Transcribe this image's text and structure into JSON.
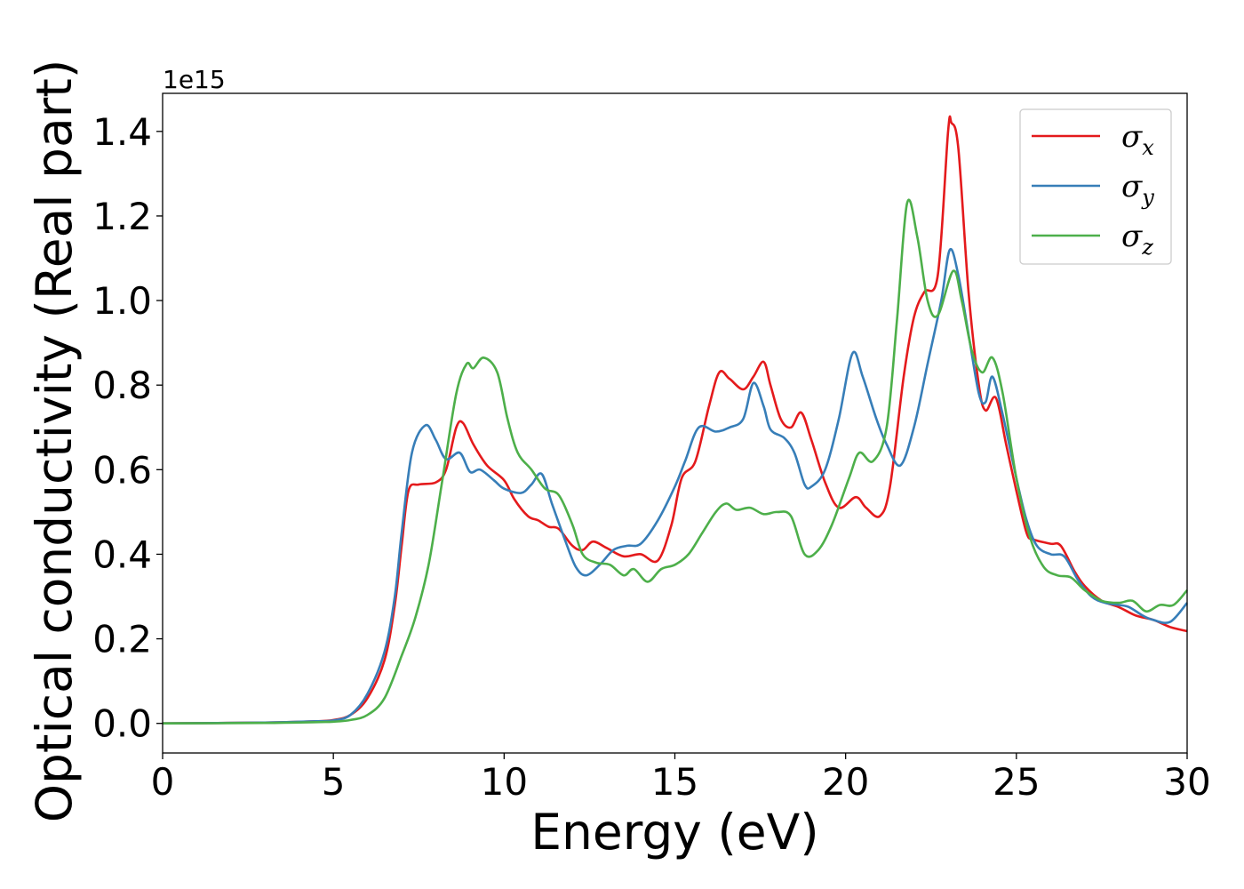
{
  "chart_data": {
    "type": "line",
    "xlabel": "Energy (eV)",
    "ylabel": "Optical conductivity (Real part)",
    "y_offset_label": "1e15",
    "xlim": [
      0,
      30
    ],
    "ylim": [
      -0.07,
      1.49
    ],
    "x_ticks": [
      0,
      5,
      10,
      15,
      20,
      25,
      30
    ],
    "x_tick_labels": [
      "0",
      "5",
      "10",
      "15",
      "20",
      "25",
      "30"
    ],
    "y_ticks": [
      0.0,
      0.2,
      0.4,
      0.6,
      0.8,
      1.0,
      1.2,
      1.4
    ],
    "y_tick_labels": [
      "0.0",
      "0.2",
      "0.4",
      "0.6",
      "0.8",
      "1.0",
      "1.2",
      "1.4"
    ],
    "grid": false,
    "legend_position": "top-right",
    "series": [
      {
        "name": "σx",
        "legend_base": "σ",
        "legend_sub": "x",
        "color": "#e41a1c",
        "points": [
          [
            0,
            0
          ],
          [
            3,
            0.002
          ],
          [
            4.5,
            0.005
          ],
          [
            5,
            0.008
          ],
          [
            5.5,
            0.02
          ],
          [
            6,
            0.06
          ],
          [
            6.5,
            0.15
          ],
          [
            6.8,
            0.28
          ],
          [
            7,
            0.42
          ],
          [
            7.2,
            0.55
          ],
          [
            7.5,
            0.565
          ],
          [
            8,
            0.57
          ],
          [
            8.3,
            0.6
          ],
          [
            8.6,
            0.7
          ],
          [
            8.8,
            0.71
          ],
          [
            9.1,
            0.66
          ],
          [
            9.5,
            0.61
          ],
          [
            10,
            0.575
          ],
          [
            10.3,
            0.53
          ],
          [
            10.7,
            0.49
          ],
          [
            11,
            0.48
          ],
          [
            11.3,
            0.465
          ],
          [
            11.6,
            0.46
          ],
          [
            12,
            0.42
          ],
          [
            12.3,
            0.41
          ],
          [
            12.6,
            0.43
          ],
          [
            13,
            0.415
          ],
          [
            13.5,
            0.395
          ],
          [
            14,
            0.4
          ],
          [
            14.5,
            0.385
          ],
          [
            14.9,
            0.47
          ],
          [
            15.2,
            0.58
          ],
          [
            15.6,
            0.62
          ],
          [
            16,
            0.75
          ],
          [
            16.3,
            0.83
          ],
          [
            16.6,
            0.815
          ],
          [
            17,
            0.79
          ],
          [
            17.3,
            0.82
          ],
          [
            17.6,
            0.855
          ],
          [
            17.8,
            0.8
          ],
          [
            18.1,
            0.72
          ],
          [
            18.4,
            0.7
          ],
          [
            18.7,
            0.735
          ],
          [
            19,
            0.67
          ],
          [
            19.4,
            0.57
          ],
          [
            19.8,
            0.51
          ],
          [
            20.3,
            0.535
          ],
          [
            20.6,
            0.51
          ],
          [
            21,
            0.49
          ],
          [
            21.3,
            0.56
          ],
          [
            21.7,
            0.82
          ],
          [
            22,
            0.96
          ],
          [
            22.3,
            1.02
          ],
          [
            22.7,
            1.06
          ],
          [
            23,
            1.4
          ],
          [
            23.1,
            1.42
          ],
          [
            23.3,
            1.36
          ],
          [
            23.6,
            1.02
          ],
          [
            23.9,
            0.8
          ],
          [
            24.1,
            0.74
          ],
          [
            24.4,
            0.77
          ],
          [
            24.7,
            0.66
          ],
          [
            25,
            0.55
          ],
          [
            25.3,
            0.45
          ],
          [
            25.5,
            0.435
          ],
          [
            26,
            0.425
          ],
          [
            26.3,
            0.42
          ],
          [
            26.7,
            0.36
          ],
          [
            27,
            0.325
          ],
          [
            27.5,
            0.29
          ],
          [
            28,
            0.275
          ],
          [
            28.5,
            0.255
          ],
          [
            29,
            0.245
          ],
          [
            29.5,
            0.228
          ],
          [
            30,
            0.218
          ]
        ]
      },
      {
        "name": "σy",
        "legend_base": "σ",
        "legend_sub": "y",
        "color": "#377eb8",
        "points": [
          [
            0,
            0
          ],
          [
            3,
            0.002
          ],
          [
            4.5,
            0.005
          ],
          [
            5,
            0.007
          ],
          [
            5.5,
            0.02
          ],
          [
            6,
            0.07
          ],
          [
            6.5,
            0.17
          ],
          [
            6.8,
            0.3
          ],
          [
            7,
            0.45
          ],
          [
            7.3,
            0.64
          ],
          [
            7.7,
            0.705
          ],
          [
            8,
            0.67
          ],
          [
            8.3,
            0.625
          ],
          [
            8.7,
            0.64
          ],
          [
            9,
            0.595
          ],
          [
            9.3,
            0.6
          ],
          [
            9.7,
            0.575
          ],
          [
            10,
            0.555
          ],
          [
            10.5,
            0.545
          ],
          [
            10.8,
            0.565
          ],
          [
            11.1,
            0.59
          ],
          [
            11.4,
            0.52
          ],
          [
            11.8,
            0.43
          ],
          [
            12.1,
            0.37
          ],
          [
            12.4,
            0.35
          ],
          [
            12.8,
            0.375
          ],
          [
            13.2,
            0.41
          ],
          [
            13.6,
            0.42
          ],
          [
            14,
            0.425
          ],
          [
            14.5,
            0.48
          ],
          [
            15,
            0.56
          ],
          [
            15.3,
            0.62
          ],
          [
            15.7,
            0.7
          ],
          [
            16.2,
            0.69
          ],
          [
            16.6,
            0.7
          ],
          [
            17,
            0.72
          ],
          [
            17.3,
            0.805
          ],
          [
            17.6,
            0.75
          ],
          [
            17.8,
            0.695
          ],
          [
            18.2,
            0.675
          ],
          [
            18.5,
            0.64
          ],
          [
            18.8,
            0.565
          ],
          [
            19,
            0.56
          ],
          [
            19.4,
            0.6
          ],
          [
            19.8,
            0.72
          ],
          [
            20.2,
            0.875
          ],
          [
            20.5,
            0.82
          ],
          [
            20.9,
            0.72
          ],
          [
            21.2,
            0.66
          ],
          [
            21.6,
            0.61
          ],
          [
            22,
            0.7
          ],
          [
            22.4,
            0.85
          ],
          [
            22.8,
            1.0
          ],
          [
            23.05,
            1.12
          ],
          [
            23.3,
            1.06
          ],
          [
            23.6,
            0.92
          ],
          [
            23.9,
            0.78
          ],
          [
            24.1,
            0.76
          ],
          [
            24.3,
            0.82
          ],
          [
            24.6,
            0.73
          ],
          [
            25,
            0.58
          ],
          [
            25.3,
            0.48
          ],
          [
            25.6,
            0.42
          ],
          [
            26,
            0.4
          ],
          [
            26.4,
            0.395
          ],
          [
            26.8,
            0.34
          ],
          [
            27.2,
            0.3
          ],
          [
            27.6,
            0.285
          ],
          [
            28,
            0.28
          ],
          [
            28.3,
            0.275
          ],
          [
            28.7,
            0.255
          ],
          [
            29,
            0.245
          ],
          [
            29.5,
            0.24
          ],
          [
            30,
            0.285
          ]
        ]
      },
      {
        "name": "σz",
        "legend_base": "σ",
        "legend_sub": "z",
        "color": "#4daf4a",
        "points": [
          [
            0,
            0
          ],
          [
            3,
            0.001
          ],
          [
            4.5,
            0.003
          ],
          [
            5,
            0.004
          ],
          [
            5.5,
            0.008
          ],
          [
            6,
            0.02
          ],
          [
            6.5,
            0.06
          ],
          [
            7,
            0.16
          ],
          [
            7.4,
            0.25
          ],
          [
            7.8,
            0.38
          ],
          [
            8.2,
            0.58
          ],
          [
            8.6,
            0.78
          ],
          [
            8.9,
            0.85
          ],
          [
            9.1,
            0.84
          ],
          [
            9.4,
            0.865
          ],
          [
            9.8,
            0.83
          ],
          [
            10.1,
            0.72
          ],
          [
            10.4,
            0.64
          ],
          [
            10.8,
            0.6
          ],
          [
            11.2,
            0.555
          ],
          [
            11.6,
            0.54
          ],
          [
            12,
            0.47
          ],
          [
            12.3,
            0.4
          ],
          [
            12.7,
            0.38
          ],
          [
            13.1,
            0.375
          ],
          [
            13.5,
            0.35
          ],
          [
            13.8,
            0.365
          ],
          [
            14.2,
            0.335
          ],
          [
            14.6,
            0.365
          ],
          [
            15,
            0.375
          ],
          [
            15.4,
            0.4
          ],
          [
            15.8,
            0.45
          ],
          [
            16.2,
            0.5
          ],
          [
            16.5,
            0.52
          ],
          [
            16.8,
            0.505
          ],
          [
            17.2,
            0.51
          ],
          [
            17.6,
            0.495
          ],
          [
            18,
            0.5
          ],
          [
            18.4,
            0.49
          ],
          [
            18.8,
            0.4
          ],
          [
            19.2,
            0.41
          ],
          [
            19.6,
            0.47
          ],
          [
            20.1,
            0.58
          ],
          [
            20.4,
            0.64
          ],
          [
            20.8,
            0.62
          ],
          [
            21.2,
            0.7
          ],
          [
            21.5,
            0.95
          ],
          [
            21.8,
            1.23
          ],
          [
            22.1,
            1.15
          ],
          [
            22.4,
            1.0
          ],
          [
            22.7,
            0.965
          ],
          [
            23.15,
            1.07
          ],
          [
            23.4,
            1.0
          ],
          [
            23.7,
            0.88
          ],
          [
            24,
            0.83
          ],
          [
            24.3,
            0.865
          ],
          [
            24.6,
            0.78
          ],
          [
            25,
            0.58
          ],
          [
            25.4,
            0.44
          ],
          [
            25.8,
            0.37
          ],
          [
            26.2,
            0.35
          ],
          [
            26.6,
            0.345
          ],
          [
            27,
            0.315
          ],
          [
            27.5,
            0.29
          ],
          [
            28,
            0.285
          ],
          [
            28.4,
            0.29
          ],
          [
            28.8,
            0.265
          ],
          [
            29.2,
            0.28
          ],
          [
            29.6,
            0.28
          ],
          [
            30,
            0.315
          ]
        ]
      }
    ]
  }
}
